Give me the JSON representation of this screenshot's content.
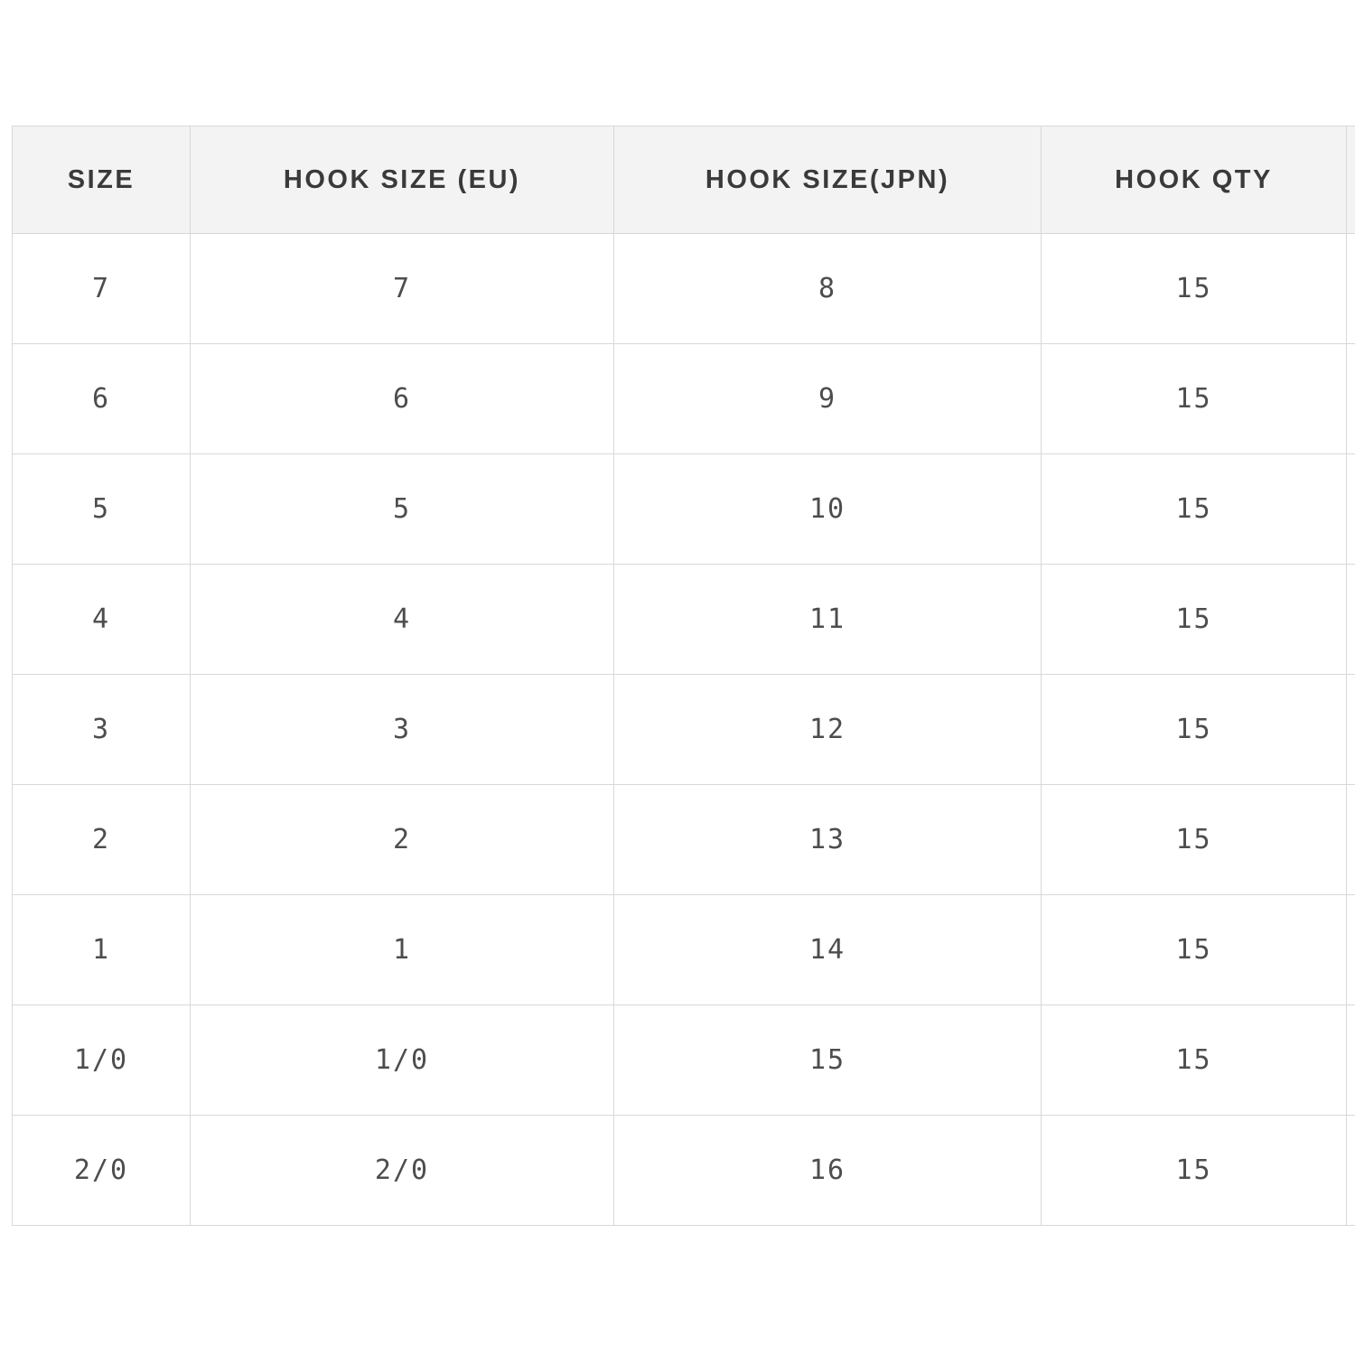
{
  "chart_data": {
    "type": "table",
    "columns": [
      "SIZE",
      "HOOK SIZE (EU)",
      "HOOK SIZE(JPN)",
      "HOOK QTY"
    ],
    "rows": [
      [
        "7",
        "7",
        "8",
        "15"
      ],
      [
        "6",
        "6",
        "9",
        "15"
      ],
      [
        "5",
        "5",
        "10",
        "15"
      ],
      [
        "4",
        "4",
        "11",
        "15"
      ],
      [
        "3",
        "3",
        "12",
        "15"
      ],
      [
        "2",
        "2",
        "13",
        "15"
      ],
      [
        "1",
        "1",
        "14",
        "15"
      ],
      [
        "1/0",
        "1/0",
        "15",
        "15"
      ],
      [
        "2/0",
        "2/0",
        "16",
        "15"
      ]
    ]
  },
  "colors": {
    "page_bg": "#ffffff",
    "header_bg": "#f3f3f3",
    "border": "#d8d8d8",
    "header_text": "#3a3a3a",
    "cell_text": "#4d4d4d"
  }
}
